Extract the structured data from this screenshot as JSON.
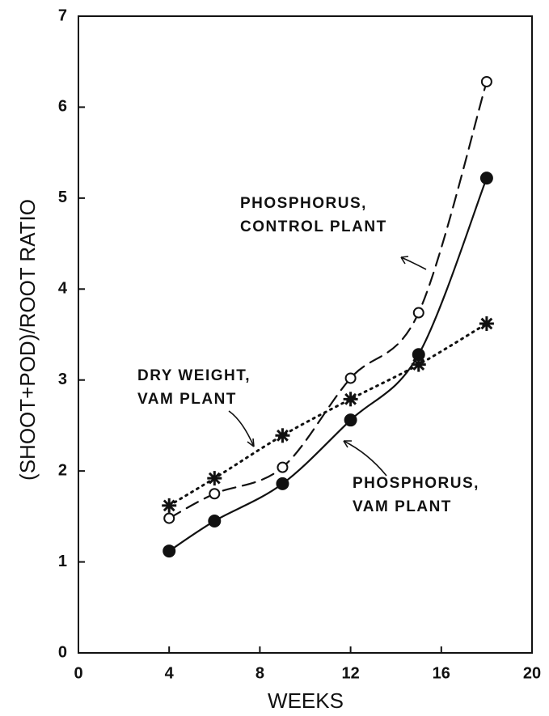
{
  "chart_data": {
    "type": "line",
    "x_label": "WEEKS",
    "y_label": "(SHOOT+POD)/ROOT RATIO",
    "x": [
      4,
      6,
      9,
      12,
      15,
      18
    ],
    "xlim": [
      0,
      20
    ],
    "xticks": [
      0,
      4,
      8,
      12,
      16,
      20
    ],
    "ylim": [
      0,
      7
    ],
    "yticks": [
      0,
      1,
      2,
      3,
      4,
      5,
      6,
      7
    ],
    "series": [
      {
        "name_lines": [
          "PHOSPHORUS,",
          "CONTROL PLANT"
        ],
        "color": "#111111",
        "marker": "open-circle",
        "dash": "dashed",
        "values": [
          1.48,
          1.75,
          2.04,
          3.02,
          3.74,
          6.28
        ]
      },
      {
        "name_lines": [
          "PHOSPHORUS,",
          "VAM PLANT"
        ],
        "color": "#111111",
        "marker": "filled-circle",
        "dash": "solid",
        "values": [
          1.12,
          1.45,
          1.86,
          2.56,
          3.28,
          5.22
        ]
      },
      {
        "name_lines": [
          "DRY WEIGHT,",
          "VAM PLANT"
        ],
        "color": "#111111",
        "marker": "asterisk",
        "dash": "dotted",
        "values": [
          1.62,
          1.92,
          2.39,
          2.79,
          3.17,
          3.62
        ]
      }
    ]
  }
}
